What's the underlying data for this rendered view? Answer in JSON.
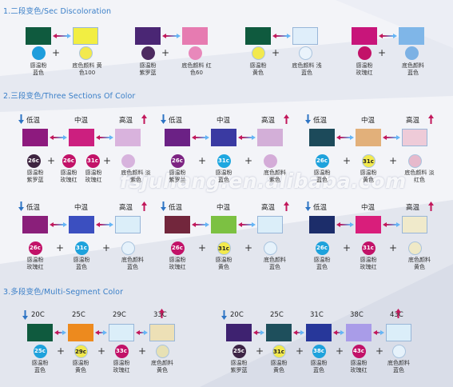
{
  "titles": {
    "s1": "1.二段变色/Sec Discoloration",
    "s2": "2.三段变色/Three Sections Of Color",
    "s3": "3.多段变色/Multi-Segment Color"
  },
  "watermark": "fsjuliang.en.alibaba.com",
  "colors": {
    "title": "#3a7fc8",
    "arrow_down": "#2d74c4",
    "arrow_up": "#c2185b",
    "connector_start": "#c2185b",
    "connector_end": "#64b5f6"
  },
  "section1": [
    {
      "swatches": [
        "#0f5a3e",
        "#f2ee42"
      ],
      "circles": [
        {
          "color": "#1e9ddc",
          "text": ""
        },
        {
          "color": "#f2e94e",
          "text": ""
        }
      ],
      "labels": [
        "感温粉\n蓝色",
        "底色颜料 黄\n色100"
      ]
    },
    {
      "swatches": [
        "#4a2674",
        "#e67bb1"
      ],
      "circles": [
        {
          "color": "#4d2a60",
          "text": ""
        },
        {
          "color": "#e888bb",
          "text": ""
        }
      ],
      "labels": [
        "感温粉\n紫罗蓝",
        "底色颜料 红\n色60"
      ]
    },
    {
      "swatches": [
        "#0f5a3e",
        "#dfeefa"
      ],
      "circles": [
        {
          "color": "#f2e94e",
          "text": ""
        },
        {
          "color": "#eaf3fb",
          "text": ""
        }
      ],
      "labels": [
        "感温粉\n黄色",
        "底色颜料 浅\n蓝色"
      ]
    },
    {
      "swatches": [
        "#c8157a",
        "#7fb6e8"
      ],
      "circles": [
        {
          "color": "#c21268",
          "text": ""
        },
        {
          "color": "#7cb1e4",
          "text": ""
        }
      ],
      "labels": [
        "感温粉\n玫瑰红",
        "底色颜料\n蓝色"
      ]
    }
  ],
  "section2": {
    "temps": [
      "低温",
      "中温",
      "高温"
    ],
    "groups": [
      {
        "swatches": [
          "#8d1a7e",
          "#cc1f7f",
          "#d9b3dd"
        ],
        "circles": [
          {
            "color": "#3d2440",
            "text": "26c"
          },
          {
            "color": "#c21268",
            "text": "26c"
          },
          {
            "color": "#c21268",
            "text": "31c"
          },
          {
            "color": "#d7b3dd",
            "text": ""
          }
        ],
        "labels": [
          "感温粉\n紫罗蓝",
          "感温粉\n玫瑰红",
          "感温粉\n玫瑰红",
          "底色颜料 淡\n紫色"
        ]
      },
      {
        "swatches": [
          "#6b2185",
          "#3a3aa2",
          "#d3afd8"
        ],
        "circles": [
          {
            "color": "#7d2483",
            "text": "26c"
          },
          {
            "color": "#1ea7e0",
            "text": "31c"
          },
          {
            "color": "#d4acd8",
            "text": ""
          }
        ],
        "labels": [
          "感温粉\n紫罗兰",
          "感温粉\n蓝色",
          "底色颜料\n紫色"
        ]
      },
      {
        "swatches": [
          "#1c4a5a",
          "#e2b07a",
          "#eecbd8"
        ],
        "circles": [
          {
            "color": "#1ea2dc",
            "text": "26c"
          },
          {
            "color": "#f2e94e",
            "text": "31c"
          },
          {
            "color": "#e6b9cc",
            "text": ""
          }
        ],
        "labels": [
          "感温粉\n蓝色",
          "感温粉\n黄色",
          "底色颜料 淡\n红色"
        ]
      },
      {
        "swatches": [
          "#8a1f7a",
          "#3b4fc0",
          "#dbeef9"
        ],
        "circles": [
          {
            "color": "#c21268",
            "text": "26c"
          },
          {
            "color": "#1ea2dc",
            "text": "31c"
          },
          {
            "color": "#e6f2fb",
            "text": ""
          }
        ],
        "labels": [
          "感温粉\n玫瑰红",
          "感温粉\n蓝色",
          "底色颜料\n蓝色"
        ]
      },
      {
        "swatches": [
          "#72263c",
          "#7cc142",
          "#dbeef9"
        ],
        "circles": [
          {
            "color": "#c21268",
            "text": "26c"
          },
          {
            "color": "#f2e94e",
            "text": "31c"
          },
          {
            "color": "#e6f2fb",
            "text": ""
          }
        ],
        "labels": [
          "感温粉\n玫瑰红",
          "感温粉\n黄色",
          "底色颜料\n蓝色"
        ]
      },
      {
        "swatches": [
          "#1c2d6a",
          "#d91e7b",
          "#f0eacb"
        ],
        "circles": [
          {
            "color": "#1ea2dc",
            "text": "26c"
          },
          {
            "color": "#c21268",
            "text": "31c"
          },
          {
            "color": "#efe9c6",
            "text": ""
          }
        ],
        "labels": [
          "感温粉\n蓝色",
          "感温粉\n玫瑰红",
          "底色颜料\n黄色"
        ]
      }
    ]
  },
  "section3": [
    {
      "temps": [
        "20C",
        "25C",
        "29C",
        "33C"
      ],
      "swatches": [
        "#0f5a3e",
        "#ed8a1e",
        "#dbeef9",
        "#ede0b6"
      ],
      "circles": [
        {
          "color": "#1ea2dc",
          "text": "25c"
        },
        {
          "color": "#f2e94e",
          "text": "29c"
        },
        {
          "color": "#c21268",
          "text": "33c"
        },
        {
          "color": "#e7e1b4",
          "text": ""
        }
      ],
      "labels": [
        "感温粉\n蓝色",
        "感温粉\n黄色",
        "感温粉\n玫瑰红",
        "底色颜料\n黄色"
      ]
    },
    {
      "temps": [
        "20C",
        "25C",
        "31C",
        "38C",
        "43C"
      ],
      "swatches": [
        "#3e2270",
        "#1e4f5c",
        "#27379a",
        "#a99ce8",
        "#dbeef9"
      ],
      "circles": [
        {
          "color": "#3d2445",
          "text": "25c"
        },
        {
          "color": "#f2e94e",
          "text": "31c"
        },
        {
          "color": "#1ea2dc",
          "text": "38c"
        },
        {
          "color": "#c21268",
          "text": "43c"
        },
        {
          "color": "#e6f2fb",
          "text": ""
        }
      ],
      "labels": [
        "感温粉\n紫罗蓝",
        "感温粉\n黄色",
        "感温粉\n蓝色",
        "感温粉\n玫瑰红",
        "底色颜料\n蓝色"
      ]
    }
  ]
}
